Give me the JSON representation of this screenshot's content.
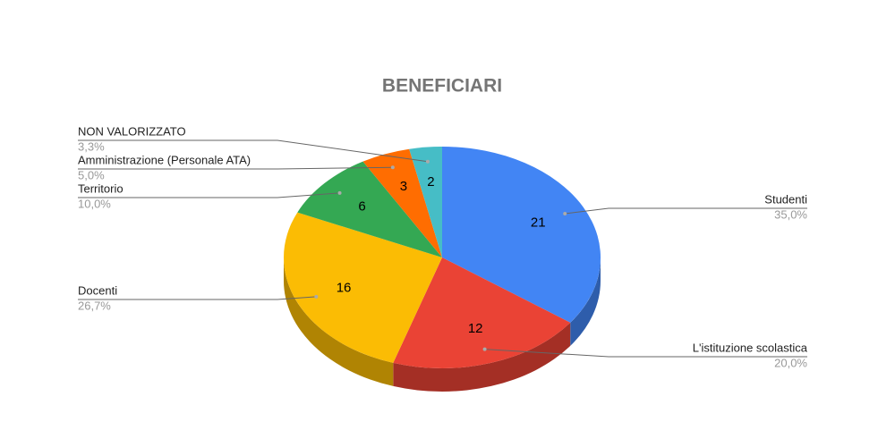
{
  "chart_data": {
    "type": "pie",
    "title": "BENEFICIARI",
    "categories": [
      "Studenti",
      "L'istituzione scolastica",
      "Docenti",
      "Territorio",
      "Amministrazione (Personale ATA)",
      "NON VALORIZZATO"
    ],
    "values": [
      21,
      12,
      16,
      6,
      3,
      2
    ],
    "percent_labels": [
      "35,0%",
      "20,0%",
      "26,7%",
      "10,0%",
      "5,0%",
      "3,3%"
    ],
    "colors": [
      "#4285f4",
      "#ea4335",
      "#fbbc04",
      "#34a853",
      "#ff6d01",
      "#46bdc6"
    ],
    "three_d": true
  }
}
